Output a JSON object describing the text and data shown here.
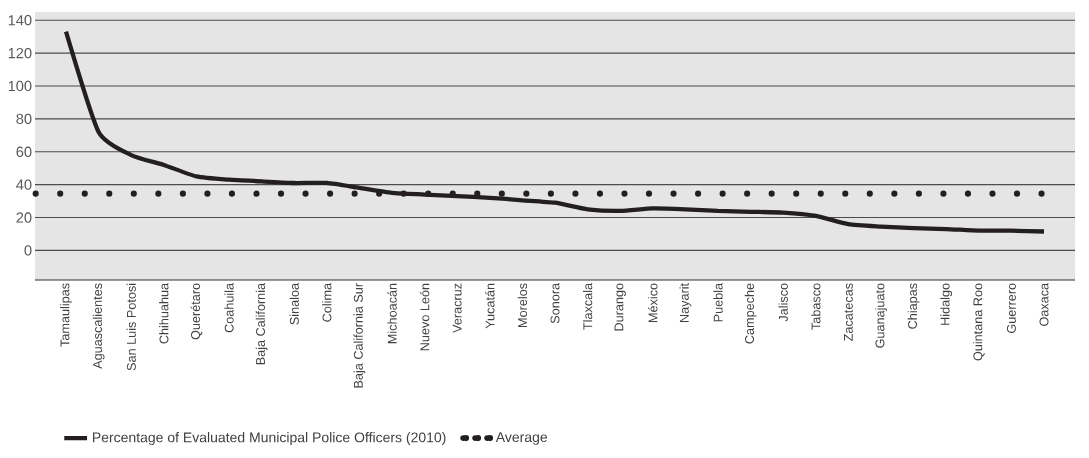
{
  "chart_data": {
    "type": "line",
    "categories": [
      "Tamaulipas",
      "Aguascalientes",
      "San Luis Potosi",
      "Chihuahua",
      "Querétaro",
      "Coahuila",
      "Baja California",
      "Sinaloa",
      "Colima",
      "Baja California Sur",
      "Michoacán",
      "Nuevo León",
      "Veracruz",
      "Yucatán",
      "Morelos",
      "Sonora",
      "Tlaxcala",
      "Durango",
      "México",
      "Nayarit",
      "Puebla",
      "Campeche",
      "Jalisco",
      "Tabasco",
      "Zacatecas",
      "Guanajuato",
      "Chiapas",
      "Hidalgo",
      "Quintana Roo",
      "Guerrero",
      "Oaxaca"
    ],
    "series": [
      {
        "name": "Percentage of Evaluated Municipal Police Officers (2010)",
        "color": "#231f20",
        "values": [
          133,
          72,
          58,
          52,
          45,
          43,
          42,
          41,
          41,
          38,
          35,
          34,
          33,
          32,
          30.5,
          29,
          25,
          24,
          25.5,
          25,
          24,
          23.5,
          23,
          21,
          16,
          14.5,
          13.5,
          13,
          12,
          12,
          11.5
        ]
      }
    ],
    "ref_lines": [
      {
        "axis": "y",
        "value": 34.5,
        "label": "Average",
        "color": "#231f20",
        "line_style": "dotted"
      }
    ],
    "ylim": [
      -18,
      145
    ],
    "yticks": [
      0,
      20,
      40,
      60,
      80,
      100,
      120,
      140
    ],
    "grid": "y",
    "legend": "bottom left",
    "line_style": "solid",
    "marker": "none"
  }
}
